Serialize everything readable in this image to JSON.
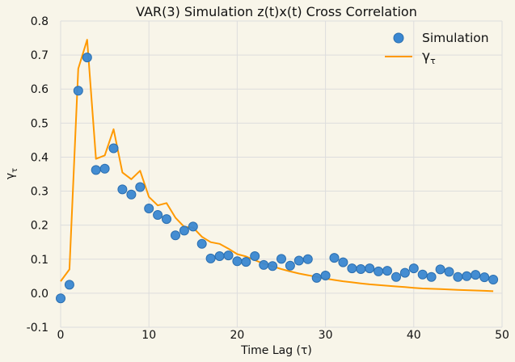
{
  "chart_data": {
    "type": "scatter",
    "title": "VAR(3) Simulation z(t)x(t) Cross Correlation",
    "xlabel": "Time Lag (τ)",
    "ylabel": "γ",
    "ylabel_sub": "τ",
    "xlim": [
      0,
      50
    ],
    "ylim": [
      -0.1,
      0.8
    ],
    "xticks": [
      0,
      10,
      20,
      30,
      40,
      50
    ],
    "yticks": [
      -0.1,
      0.0,
      0.1,
      0.2,
      0.3,
      0.4,
      0.5,
      0.6,
      0.7,
      0.8
    ],
    "grid": true,
    "legend_position": "top-right",
    "colors": {
      "background": "#f8f5e9",
      "grid": "#dddddd",
      "scatter": "#3a87d1",
      "scatter_edge": "#2b6fb0",
      "line": "#ff9900"
    },
    "series": [
      {
        "name": "Simulation",
        "kind": "scatter",
        "x": [
          0,
          1,
          2,
          3,
          4,
          5,
          6,
          7,
          8,
          9,
          10,
          11,
          12,
          13,
          14,
          15,
          16,
          17,
          18,
          19,
          20,
          21,
          22,
          23,
          24,
          25,
          26,
          27,
          28,
          29,
          30,
          31,
          32,
          33,
          34,
          35,
          36,
          37,
          38,
          39,
          40,
          41,
          42,
          43,
          44,
          45,
          46,
          47,
          48,
          49
        ],
        "y": [
          -0.015,
          0.025,
          0.595,
          0.693,
          0.362,
          0.366,
          0.426,
          0.305,
          0.29,
          0.312,
          0.249,
          0.23,
          0.218,
          0.17,
          0.184,
          0.196,
          0.145,
          0.102,
          0.109,
          0.111,
          0.094,
          0.092,
          0.109,
          0.083,
          0.08,
          0.101,
          0.081,
          0.096,
          0.1,
          0.045,
          0.052,
          0.104,
          0.091,
          0.073,
          0.071,
          0.073,
          0.064,
          0.066,
          0.048,
          0.06,
          0.073,
          0.055,
          0.048,
          0.07,
          0.063,
          0.048,
          0.05,
          0.054,
          0.047,
          0.04
        ]
      },
      {
        "name": "γ",
        "name_sub": "τ",
        "kind": "line",
        "x": [
          0,
          1,
          2,
          3,
          4,
          5,
          6,
          7,
          8,
          9,
          10,
          11,
          12,
          13,
          14,
          15,
          16,
          17,
          18,
          19,
          20,
          21,
          22,
          23,
          24,
          25,
          26,
          27,
          28,
          29,
          30,
          31,
          32,
          33,
          34,
          35,
          36,
          37,
          38,
          39,
          40,
          41,
          42,
          43,
          44,
          45,
          46,
          47,
          48,
          49
        ],
        "y": [
          0.035,
          0.07,
          0.66,
          0.745,
          0.395,
          0.405,
          0.482,
          0.355,
          0.335,
          0.36,
          0.283,
          0.258,
          0.265,
          0.222,
          0.195,
          0.193,
          0.166,
          0.15,
          0.145,
          0.131,
          0.115,
          0.108,
          0.097,
          0.087,
          0.079,
          0.071,
          0.064,
          0.058,
          0.053,
          0.048,
          0.043,
          0.039,
          0.035,
          0.032,
          0.029,
          0.026,
          0.024,
          0.022,
          0.02,
          0.018,
          0.016,
          0.014,
          0.013,
          0.012,
          0.011,
          0.01,
          0.009,
          0.008,
          0.007,
          0.006
        ]
      }
    ]
  }
}
